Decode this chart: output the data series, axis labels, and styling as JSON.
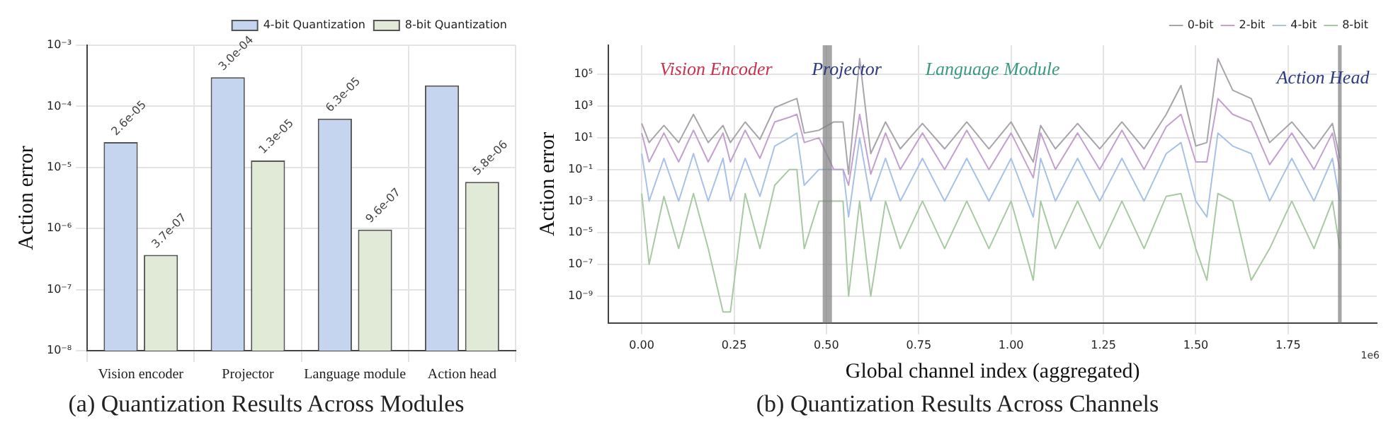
{
  "chart_data": [
    {
      "type": "bar",
      "title": "(a) Quantization Results Across Modules",
      "ylabel": "Action error",
      "categories": [
        "Vision encoder",
        "Projector",
        "Language module",
        "Action head"
      ],
      "log": "y",
      "ylim": [
        1e-08,
        0.001
      ],
      "yticks": [
        {
          "value": 1e-08,
          "label": "10⁻⁸"
        },
        {
          "value": 1e-07,
          "label": "10⁻⁷"
        },
        {
          "value": 1e-06,
          "label": "10⁻⁶"
        },
        {
          "value": 1e-05,
          "label": "10⁻⁵"
        },
        {
          "value": 0.0001,
          "label": "10⁻⁴"
        },
        {
          "value": 0.001,
          "label": "10⁻³"
        }
      ],
      "grid": true,
      "legend": "top right",
      "series": [
        {
          "name": "4-bit Quantization",
          "color": "#c5d5f0",
          "values": [
            2.6e-05,
            0.0003,
            6.3e-05,
            0.00022
          ],
          "value_labels": [
            "2.6e-05",
            "3.0e-04",
            "6.3e-05",
            null
          ]
        },
        {
          "name": "8-bit Quantization",
          "color": "#e0ead6",
          "values": [
            3.7e-07,
            1.3e-05,
            9.6e-07,
            5.8e-06
          ],
          "value_labels": [
            "3.7e-07",
            "1.3e-05",
            "9.6e-07",
            "5.8e-06"
          ]
        }
      ]
    },
    {
      "type": "line",
      "title": "(b) Quantization Results Across Channels",
      "xlabel": "Global channel index (aggregated)",
      "ylabel": "Action error",
      "log": "y",
      "xlim": [
        -0.09,
        1.99
      ],
      "xticks": [
        {
          "value": 0,
          "label": "0.00"
        },
        0.25,
        {
          "value": 0.5,
          "label": "0.50"
        },
        0.75,
        {
          "value": 1,
          "label": "1.00"
        },
        1.25,
        {
          "value": 1.5,
          "label": "1.50"
        },
        1.75
      ],
      "ylim": [
        2e-11,
        7000000.0
      ],
      "yticks": [
        {
          "value": 1e-09,
          "label": "10⁻⁹"
        },
        {
          "value": 1e-07,
          "label": "10⁻⁷"
        },
        {
          "value": 1e-05,
          "label": "10⁻⁵"
        },
        {
          "value": 0.001,
          "label": "10⁻³"
        },
        {
          "value": 0.1,
          "label": "10⁻¹"
        },
        {
          "value": 10,
          "label": "10¹"
        },
        {
          "value": 1000,
          "label": "10³"
        },
        {
          "value": 100000,
          "label": "10⁵"
        }
      ],
      "grid": true,
      "legend": "top right",
      "x": [
        0,
        0.02,
        0.06,
        0.1,
        0.14,
        0.18,
        0.22,
        0.24,
        0.28,
        0.32,
        0.36,
        0.4,
        0.42,
        0.44,
        0.48,
        0.52,
        0.545,
        0.56,
        0.59,
        0.62,
        0.66,
        0.7,
        0.76,
        0.82,
        0.88,
        0.94,
        1,
        1.06,
        1.08,
        1.12,
        1.18,
        1.24,
        1.3,
        1.36,
        1.42,
        1.46,
        1.5,
        1.53,
        1.56,
        1.6,
        1.65,
        1.7,
        1.76,
        1.82,
        1.87,
        1.89
      ],
      "series": [
        {
          "name": "0-bit",
          "color": "#a9a4ac",
          "values": [
            80,
            5,
            60,
            5,
            300,
            5,
            60,
            5,
            100,
            8,
            800,
            2000,
            3000,
            20,
            30,
            100,
            100,
            0.05,
            1000000,
            1,
            100,
            2,
            80,
            2,
            100,
            2,
            100,
            0.3,
            60,
            2,
            80,
            2,
            100,
            2,
            300,
            20000,
            3,
            5,
            1000000,
            10000,
            3000,
            5,
            100,
            2,
            80,
            0.5
          ]
        },
        {
          "name": "2-bit",
          "color": "#c3a0d0",
          "values": [
            20,
            0.3,
            20,
            0.3,
            30,
            0.3,
            20,
            0.3,
            30,
            0.5,
            100,
            200,
            300,
            5,
            10,
            0.1,
            0.1,
            0.01,
            300,
            0.05,
            20,
            0.1,
            20,
            0.1,
            30,
            0.1,
            20,
            0.03,
            20,
            0.1,
            20,
            0.1,
            30,
            0.1,
            50,
            300,
            0.3,
            0.3,
            3000,
            300,
            100,
            0.2,
            20,
            0.1,
            20,
            0.1
          ]
        },
        {
          "name": "4-bit",
          "color": "#a8c2e6",
          "values": [
            1,
            0.001,
            0.5,
            0.001,
            1,
            0.001,
            0.5,
            0.001,
            0.5,
            0.002,
            3,
            10,
            20,
            0.01,
            0.1,
            0.1,
            0.1,
            0.0001,
            10,
            0.001,
            0.5,
            0.001,
            0.5,
            0.001,
            0.5,
            0.001,
            0.5,
            0.0001,
            0.5,
            0.001,
            0.5,
            0.001,
            0.5,
            0.001,
            1,
            5,
            0.001,
            0.0001,
            20,
            3,
            1,
            0.001,
            0.5,
            0.001,
            0.5,
            0.001
          ]
        },
        {
          "name": "8-bit",
          "color": "#a9c9a4",
          "values": [
            0.003,
            1e-07,
            0.002,
            1e-06,
            0.003,
            1e-06,
            1e-10,
            1e-10,
            0.003,
            1e-06,
            0.01,
            0.1,
            0.1,
            1e-06,
            0.001,
            0.001,
            0.001,
            1e-09,
            0.001,
            1e-09,
            0.001,
            1e-06,
            0.001,
            1e-06,
            0.001,
            1e-06,
            0.001,
            1e-08,
            0.001,
            1e-06,
            0.001,
            1e-06,
            0.001,
            1e-06,
            0.002,
            0.003,
            1e-06,
            1e-08,
            0.003,
            0.001,
            1e-08,
            1e-06,
            0.001,
            1e-06,
            0.001,
            1e-06
          ]
        }
      ],
      "bands": [
        {
          "axis": "x",
          "from": 0.49,
          "to": 0.515,
          "color": "#7f7f7f"
        },
        {
          "axis": "x",
          "from": 1.885,
          "to": 1.895,
          "color": "#7f7f7f"
        }
      ],
      "annotations": [
        "Vision Encoder",
        "Projector",
        "Language Module",
        "Action Head",
        "1e6"
      ]
    }
  ]
}
